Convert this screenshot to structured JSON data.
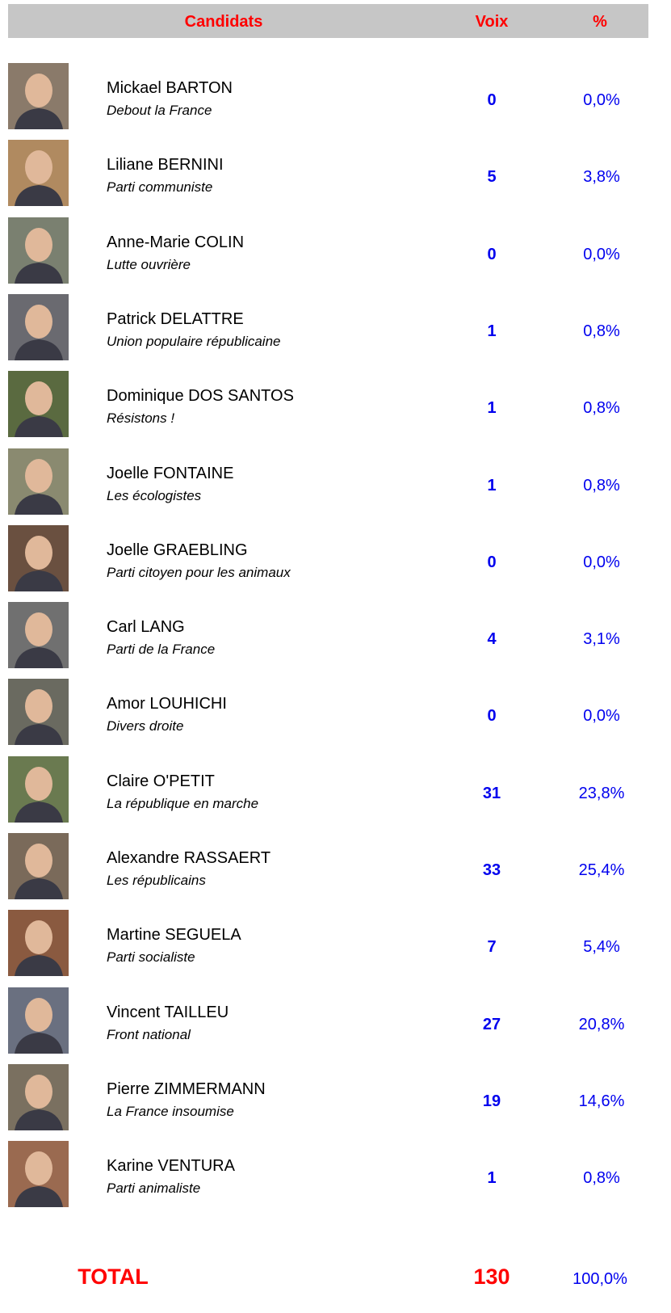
{
  "header": {
    "candidates": "Candidats",
    "votes": "Voix",
    "percent": "%"
  },
  "rows": [
    {
      "name": "Mickael BARTON",
      "party": "Debout la France",
      "votes": 0,
      "percent": "0,0%"
    },
    {
      "name": "Liliane BERNINI",
      "party": "Parti communiste",
      "votes": 5,
      "percent": "3,8%"
    },
    {
      "name": "Anne-Marie COLIN",
      "party": "Lutte ouvrière",
      "votes": 0,
      "percent": "0,0%"
    },
    {
      "name": "Patrick DELATTRE",
      "party": "Union populaire républicaine",
      "votes": 1,
      "percent": "0,8%"
    },
    {
      "name": "Dominique DOS SANTOS",
      "party": "Résistons !",
      "votes": 1,
      "percent": "0,8%"
    },
    {
      "name": "Joelle FONTAINE",
      "party": "Les écologistes",
      "votes": 1,
      "percent": "0,8%"
    },
    {
      "name": "Joelle GRAEBLING",
      "party": "Parti citoyen pour les animaux",
      "votes": 0,
      "percent": "0,0%"
    },
    {
      "name": "Carl LANG",
      "party": "Parti de la France",
      "votes": 4,
      "percent": "3,1%"
    },
    {
      "name": "Amor LOUHICHI",
      "party": "Divers droite",
      "votes": 0,
      "percent": "0,0%"
    },
    {
      "name": "Claire O'PETIT",
      "party": "La république en marche",
      "votes": 31,
      "percent": "23,8%"
    },
    {
      "name": "Alexandre RASSAERT",
      "party": "Les républicains",
      "votes": 33,
      "percent": "25,4%"
    },
    {
      "name": "Martine SEGUELA",
      "party": "Parti socialiste",
      "votes": 7,
      "percent": "5,4%"
    },
    {
      "name": "Vincent TAILLEU",
      "party": "Front national",
      "votes": 27,
      "percent": "20,8%"
    },
    {
      "name": "Pierre ZIMMERMANN",
      "party": "La France insoumise",
      "votes": 19,
      "percent": "14,6%"
    },
    {
      "name": "Karine VENTURA",
      "party": "Parti animaliste",
      "votes": 1,
      "percent": "0,8%"
    }
  ],
  "total": {
    "label": "TOTAL",
    "votes": 130,
    "percent": "100,0%"
  }
}
